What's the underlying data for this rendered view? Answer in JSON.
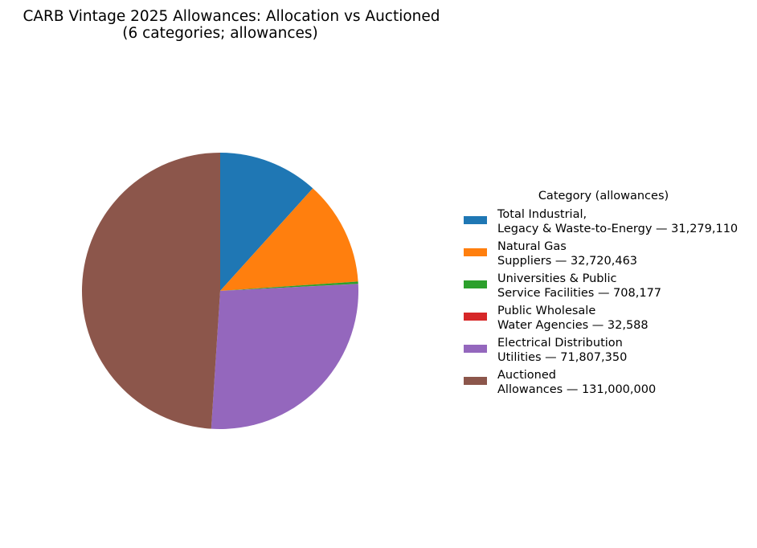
{
  "chart_data": {
    "type": "pie",
    "title": [
      "CARB Vintage 2025 Allowances: Allocation vs Auctioned",
      "(6 categories; allowances)"
    ],
    "legend_title": "Category (allowances)",
    "legend_position": "right",
    "start_angle_deg": 90,
    "direction": "clockwise",
    "slices": [
      {
        "label": [
          "Total Industrial,",
          "Legacy & Waste-to-Energy — 31,279,110"
        ],
        "value": 31279110,
        "color": "#1f77b4"
      },
      {
        "label": [
          "Natural Gas",
          "Suppliers — 32,720,463"
        ],
        "value": 32720463,
        "color": "#ff7f0e"
      },
      {
        "label": [
          "Universities & Public",
          "Service Facilities — 708,177"
        ],
        "value": 708177,
        "color": "#2ca02c"
      },
      {
        "label": [
          "Public Wholesale",
          "Water Agencies — 32,588"
        ],
        "value": 32588,
        "color": "#d62728"
      },
      {
        "label": [
          "Electrical Distribution",
          "Utilities — 71,807,350"
        ],
        "value": 71807350,
        "color": "#9467bd"
      },
      {
        "label": [
          "Auctioned",
          "Allowances — 131,000,000"
        ],
        "value": 131000000,
        "color": "#8c564b"
      }
    ]
  }
}
